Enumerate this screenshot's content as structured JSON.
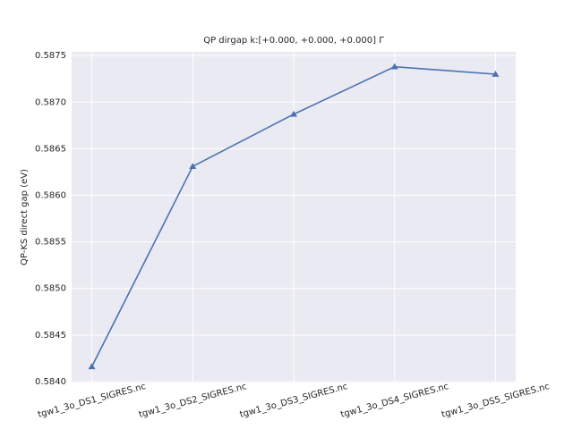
{
  "chart_data": {
    "type": "line",
    "title": "QP dirgap k:[+0.000, +0.000, +0.000] Γ",
    "y_label": "QP-KS direct gap (eV)",
    "categories": [
      "tgw1_3o_DS1_SIGRES.nc",
      "tgw1_3o_DS2_SIGRES.nc",
      "tgw1_3o_DS3_SIGRES.nc",
      "tgw1_3o_DS4_SIGRES.nc",
      "tgw1_3o_DS5_SIGRES.nc"
    ],
    "series": [
      {
        "color": "#4c72b0",
        "values": [
          0.58416,
          0.58631,
          0.58687,
          0.58738,
          0.5873
        ]
      }
    ],
    "ylim": [
      0.58399,
      0.58754
    ],
    "yticks": [
      {
        "value": 0.584,
        "label": "0.5840"
      },
      0.5845,
      {
        "value": 0.585,
        "label": "0.5850"
      },
      0.5855,
      {
        "value": 0.586,
        "label": "0.5860"
      },
      0.5865,
      {
        "value": 0.587,
        "label": "0.5870"
      },
      0.5875
    ],
    "grid": true
  }
}
